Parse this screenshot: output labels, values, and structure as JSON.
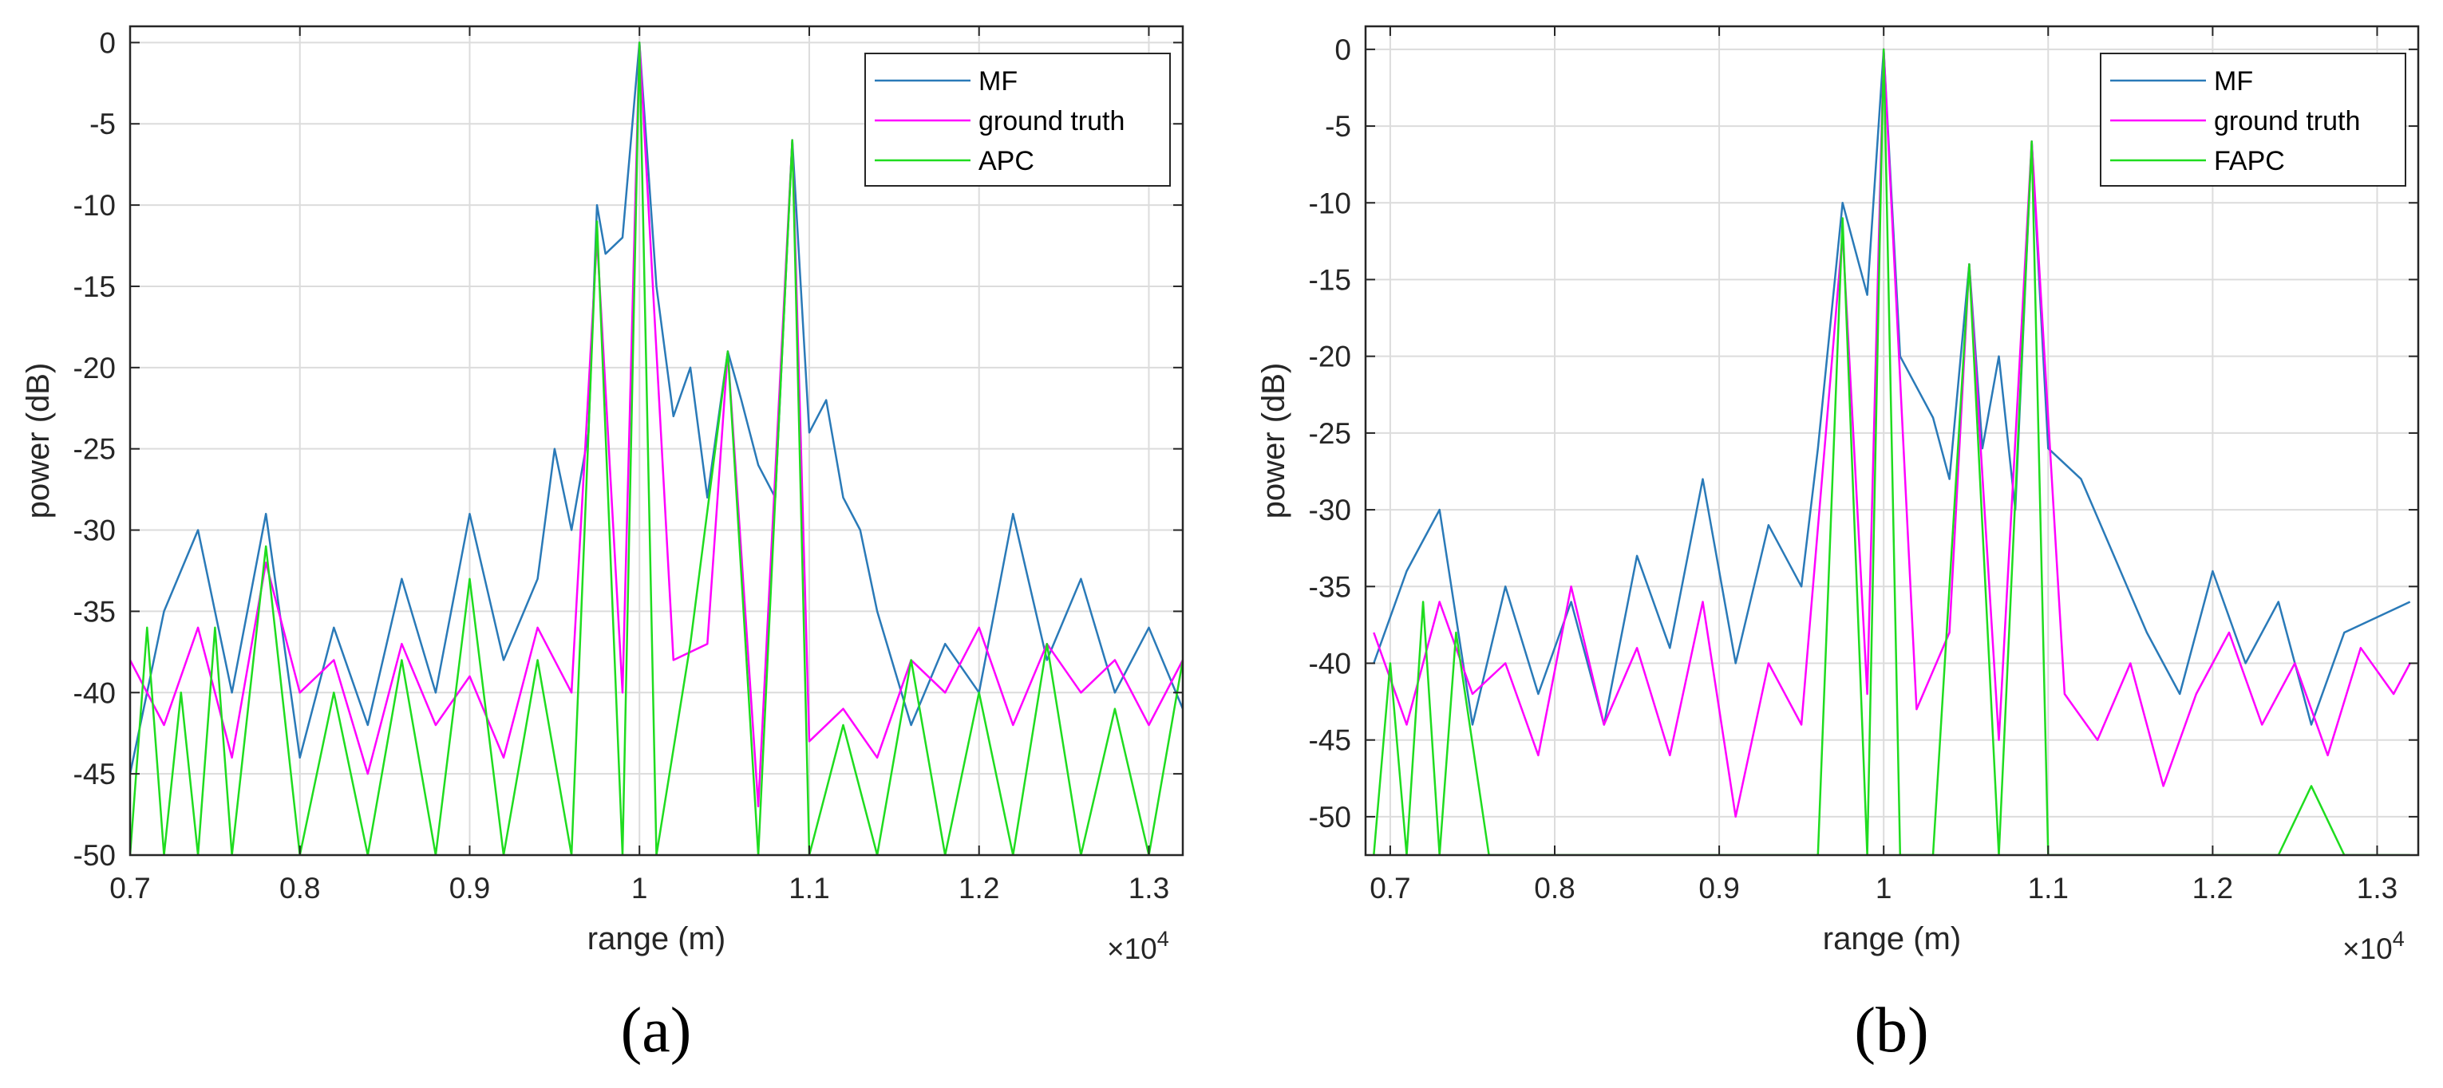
{
  "figure": {
    "colors": {
      "MF": "#2a7ab8",
      "ground_truth": "#ff00ff",
      "APC": "#1fdc1f",
      "grid": "#dcdcdc",
      "axis": "#262626"
    }
  },
  "chart_data": [
    {
      "type": "line",
      "caption": "(a)",
      "xlabel": "range (m)",
      "ylabel": "power (dB)",
      "x_exponent_label": "×10",
      "x_exponent_power": "4",
      "xlim": [
        0.7,
        1.32
      ],
      "ylim": [
        -50,
        1
      ],
      "xticks": [
        0.7,
        0.8,
        0.9,
        1,
        1.1,
        1.2,
        1.3
      ],
      "xtick_labels": [
        "0.7",
        "0.8",
        "0.9",
        "1",
        "1.1",
        "1.2",
        "1.3"
      ],
      "yticks": [
        0,
        -5,
        -10,
        -15,
        -20,
        -25,
        -30,
        -35,
        -40,
        -45,
        -50
      ],
      "ytick_labels": [
        "0",
        "-5",
        "-10",
        "-15",
        "-20",
        "-25",
        "-30",
        "-35",
        "-40",
        "-45",
        "-50"
      ],
      "grid": true,
      "legend_position": "top-right",
      "legend": [
        "MF",
        " ground truth",
        "APC"
      ],
      "peaks": [
        {
          "x": 0.975,
          "MF": -10,
          "ground_truth": -12,
          "APC": -11
        },
        {
          "x": 1.0,
          "MF": 0,
          "ground_truth": 0,
          "APC": 0
        },
        {
          "x": 1.052,
          "MF": -19,
          "ground_truth": -19,
          "APC": -19
        },
        {
          "x": 1.09,
          "MF": -6,
          "ground_truth": -6,
          "APC": -6
        }
      ],
      "series": [
        {
          "name": "MF",
          "values_x": [
            0.7,
            0.72,
            0.74,
            0.76,
            0.78,
            0.8,
            0.82,
            0.84,
            0.86,
            0.88,
            0.9,
            0.92,
            0.94,
            0.95,
            0.96,
            0.97,
            0.975,
            0.98,
            0.99,
            1.0,
            1.01,
            1.02,
            1.03,
            1.04,
            1.052,
            1.06,
            1.07,
            1.08,
            1.09,
            1.1,
            1.11,
            1.12,
            1.13,
            1.14,
            1.16,
            1.18,
            1.2,
            1.22,
            1.24,
            1.26,
            1.28,
            1.3,
            1.32
          ],
          "values": [
            -45,
            -35,
            -30,
            -40,
            -29,
            -44,
            -36,
            -42,
            -33,
            -40,
            -29,
            -38,
            -33,
            -25,
            -30,
            -24,
            -10,
            -13,
            -12,
            0,
            -15,
            -23,
            -20,
            -28,
            -19,
            -22,
            -26,
            -28,
            -6,
            -24,
            -22,
            -28,
            -30,
            -35,
            -42,
            -37,
            -40,
            -29,
            -38,
            -33,
            -40,
            -36,
            -41
          ]
        },
        {
          "name": "ground truth",
          "values_x": [
            0.7,
            0.72,
            0.74,
            0.76,
            0.78,
            0.8,
            0.82,
            0.84,
            0.86,
            0.88,
            0.9,
            0.92,
            0.94,
            0.96,
            0.975,
            0.99,
            1.0,
            1.02,
            1.04,
            1.052,
            1.07,
            1.09,
            1.1,
            1.12,
            1.14,
            1.16,
            1.18,
            1.2,
            1.22,
            1.24,
            1.26,
            1.28,
            1.3,
            1.32
          ],
          "values": [
            -38,
            -42,
            -36,
            -44,
            -32,
            -40,
            -38,
            -45,
            -37,
            -42,
            -39,
            -44,
            -36,
            -40,
            -12,
            -40,
            0,
            -38,
            -37,
            -19,
            -47,
            -6,
            -43,
            -41,
            -44,
            -38,
            -40,
            -36,
            -42,
            -37,
            -40,
            -38,
            -42,
            -38
          ]
        },
        {
          "name": "APC",
          "values_x": [
            0.7,
            0.71,
            0.72,
            0.73,
            0.74,
            0.75,
            0.76,
            0.78,
            0.8,
            0.82,
            0.84,
            0.86,
            0.88,
            0.9,
            0.92,
            0.94,
            0.96,
            0.975,
            0.99,
            1.0,
            1.01,
            1.03,
            1.052,
            1.07,
            1.09,
            1.1,
            1.12,
            1.14,
            1.16,
            1.18,
            1.2,
            1.22,
            1.24,
            1.26,
            1.28,
            1.3,
            1.32
          ],
          "values": [
            -50,
            -36,
            -50,
            -40,
            -50,
            -36,
            -50,
            -31,
            -50,
            -40,
            -50,
            -38,
            -50,
            -33,
            -50,
            -38,
            -50,
            -11,
            -50,
            0,
            -50,
            -37,
            -19,
            -50,
            -6,
            -50,
            -42,
            -50,
            -38,
            -50,
            -40,
            -50,
            -37,
            -50,
            -41,
            -50,
            -38
          ]
        }
      ]
    },
    {
      "type": "line",
      "caption": "(b)",
      "xlabel": "range (m)",
      "ylabel": "power (dB)",
      "x_exponent_label": "×10",
      "x_exponent_power": "4",
      "xlim": [
        0.685,
        1.325
      ],
      "ylim": [
        -52.5,
        1.5
      ],
      "xticks": [
        0.7,
        0.8,
        0.9,
        1,
        1.1,
        1.2,
        1.3
      ],
      "xtick_labels": [
        "0.7",
        "0.8",
        "0.9",
        "1",
        "1.1",
        "1.2",
        "1.3"
      ],
      "yticks": [
        0,
        -5,
        -10,
        -15,
        -20,
        -25,
        -30,
        -35,
        -40,
        -45,
        -50
      ],
      "ytick_labels": [
        "0",
        "-5",
        "-10",
        "-15",
        "-20",
        "-25",
        "-30",
        "-35",
        "-40",
        "-45",
        "-50"
      ],
      "grid": true,
      "legend_position": "top-right",
      "legend": [
        "MF",
        " ground truth",
        "FAPC"
      ],
      "peaks": [
        {
          "x": 0.975,
          "MF": -10,
          "ground_truth": -12,
          "FAPC": -11
        },
        {
          "x": 1.0,
          "MF": 0,
          "ground_truth": 0,
          "FAPC": 0
        },
        {
          "x": 1.052,
          "MF": -14,
          "ground_truth": -14,
          "FAPC": -14
        },
        {
          "x": 1.09,
          "MF": -6,
          "ground_truth": -6,
          "FAPC": -6
        }
      ],
      "series": [
        {
          "name": "MF",
          "values_x": [
            0.69,
            0.71,
            0.73,
            0.75,
            0.77,
            0.79,
            0.81,
            0.83,
            0.85,
            0.87,
            0.89,
            0.91,
            0.93,
            0.95,
            0.96,
            0.975,
            0.99,
            1.0,
            1.01,
            1.03,
            1.04,
            1.052,
            1.06,
            1.07,
            1.08,
            1.09,
            1.1,
            1.12,
            1.14,
            1.16,
            1.18,
            1.2,
            1.22,
            1.24,
            1.26,
            1.28,
            1.3,
            1.32
          ],
          "values": [
            -40,
            -34,
            -30,
            -44,
            -35,
            -42,
            -36,
            -44,
            -33,
            -39,
            -28,
            -40,
            -31,
            -35,
            -26,
            -10,
            -16,
            0,
            -20,
            -24,
            -28,
            -14,
            -26,
            -20,
            -30,
            -6,
            -26,
            -28,
            -33,
            -38,
            -42,
            -34,
            -40,
            -36,
            -44,
            -38,
            -37,
            -36
          ]
        },
        {
          "name": "ground truth",
          "values_x": [
            0.69,
            0.71,
            0.73,
            0.75,
            0.77,
            0.79,
            0.81,
            0.83,
            0.85,
            0.87,
            0.89,
            0.91,
            0.93,
            0.95,
            0.975,
            0.99,
            1.0,
            1.02,
            1.04,
            1.052,
            1.07,
            1.09,
            1.11,
            1.13,
            1.15,
            1.17,
            1.19,
            1.21,
            1.23,
            1.25,
            1.27,
            1.29,
            1.31,
            1.32
          ],
          "values": [
            -38,
            -44,
            -36,
            -42,
            -40,
            -46,
            -35,
            -44,
            -39,
            -46,
            -36,
            -50,
            -40,
            -44,
            -12,
            -42,
            0,
            -43,
            -38,
            -14,
            -45,
            -6,
            -42,
            -45,
            -40,
            -48,
            -42,
            -38,
            -44,
            -40,
            -46,
            -39,
            -42,
            -40
          ]
        },
        {
          "name": "FAPC",
          "values_x": [
            0.69,
            0.7,
            0.71,
            0.72,
            0.73,
            0.74,
            0.76,
            0.78,
            0.8,
            0.82,
            0.84,
            0.86,
            0.88,
            0.9,
            0.92,
            0.94,
            0.96,
            0.975,
            0.99,
            1.0,
            1.01,
            1.03,
            1.052,
            1.07,
            1.09,
            1.1,
            1.12,
            1.14,
            1.16,
            1.18,
            1.2,
            1.22,
            1.24,
            1.26,
            1.28,
            1.3,
            1.32
          ],
          "values": [
            -52.5,
            -40,
            -52.5,
            -36,
            -52.5,
            -38,
            -52.5,
            -52.5,
            -52.5,
            -52.5,
            -52.5,
            -52.5,
            -52.5,
            -52.5,
            -52.5,
            -52.5,
            -52.5,
            -11,
            -52.5,
            0,
            -52.5,
            -52.5,
            -14,
            -52.5,
            -6,
            -52.5,
            -52.5,
            -52.5,
            -52.5,
            -52.5,
            -52.5,
            -52.5,
            -52.5,
            -48,
            -52.5,
            -52.5,
            -52.5
          ]
        }
      ]
    }
  ]
}
